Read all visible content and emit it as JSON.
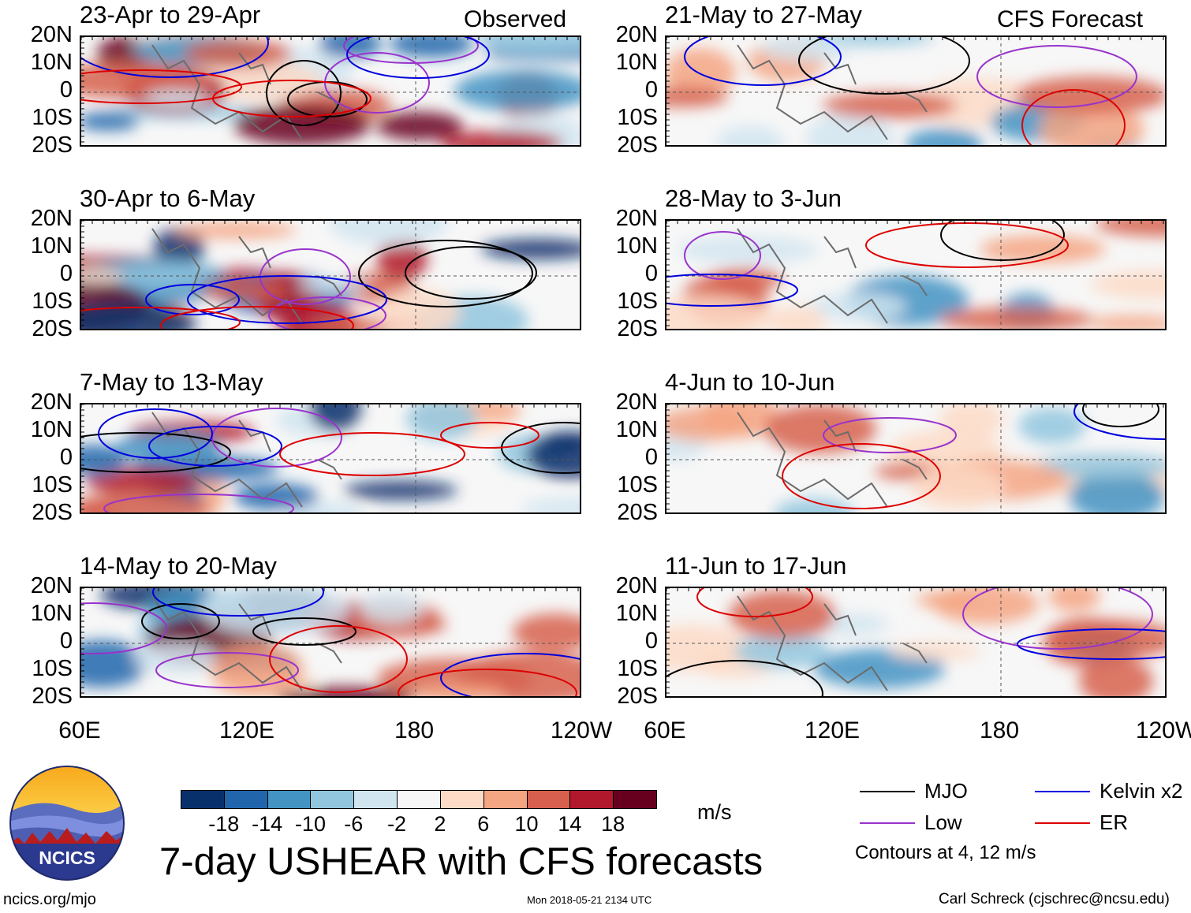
{
  "chart_data": {
    "type": "heatmap",
    "title": "7-day USHEAR with CFS forecasts",
    "units": "m/s",
    "variable": "USHEAR",
    "lat_ticks": [
      "20N",
      "10N",
      "0",
      "10S",
      "20S"
    ],
    "lon_ticks": [
      "60E",
      "120E",
      "180",
      "120W"
    ],
    "colorbar": {
      "ticks": [
        "-18",
        "-14",
        "-10",
        "-6",
        "-2",
        "2",
        "6",
        "10",
        "14",
        "18"
      ],
      "colors": [
        "#08306b",
        "#2166ac",
        "#4393c3",
        "#92c5de",
        "#d1e5f0",
        "#f7f7f7",
        "#fddbc7",
        "#f4a582",
        "#d6604d",
        "#b2182b",
        "#67001f"
      ]
    },
    "observed_label": "Observed",
    "forecast_label": "CFS Forecast",
    "panels": [
      {
        "period": "23-Apr to 29-Apr",
        "column": "Observed"
      },
      {
        "period": "30-Apr to 6-May",
        "column": "Observed"
      },
      {
        "period": "7-May to 13-May",
        "column": "Observed"
      },
      {
        "period": "14-May to 20-May",
        "column": "Observed"
      },
      {
        "period": "21-May to 27-May",
        "column": "CFS Forecast"
      },
      {
        "period": "28-May to 3-Jun",
        "column": "CFS Forecast"
      },
      {
        "period": "4-Jun to 10-Jun",
        "column": "CFS Forecast"
      },
      {
        "period": "11-Jun to 17-Jun",
        "column": "CFS Forecast"
      }
    ],
    "legend": [
      {
        "name": "MJO",
        "color": "#000000"
      },
      {
        "name": "Low",
        "color": "#9933cc"
      },
      {
        "name": "Kelvin x2",
        "color": "#0000dd"
      },
      {
        "name": "ER",
        "color": "#dd0000"
      }
    ],
    "contour_note": "Contours at 4, 12 m/s"
  },
  "logo_text": "NCICS",
  "footer": {
    "left": "ncics.org/mjo",
    "center": "Mon 2018-05-21 2134 UTC",
    "right": "Carl Schreck (cjschrec@ncsu.edu)"
  }
}
